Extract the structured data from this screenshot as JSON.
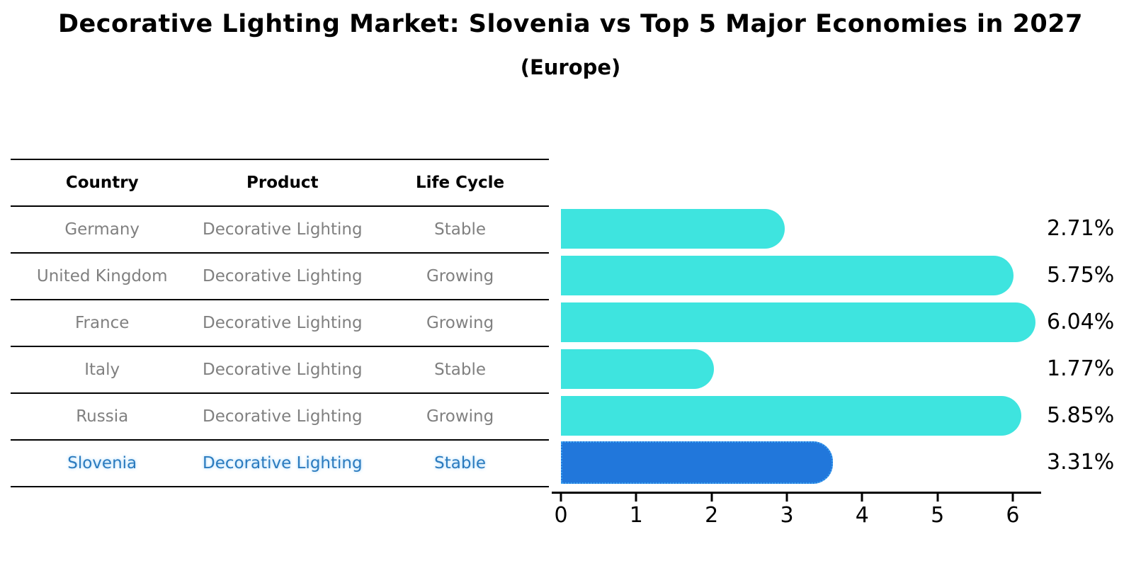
{
  "title": "Decorative Lighting Market: Slovenia vs Top 5 Major Economies in 2027",
  "subtitle": "(Europe)",
  "table": {
    "headers": [
      "Country",
      "Product",
      "Life Cycle"
    ],
    "rows": [
      {
        "country": "Germany",
        "product": "Decorative Lighting",
        "life_cycle": "Stable"
      },
      {
        "country": "United Kingdom",
        "product": "Decorative Lighting",
        "life_cycle": "Growing"
      },
      {
        "country": "France",
        "product": "Decorative Lighting",
        "life_cycle": "Growing"
      },
      {
        "country": "Italy",
        "product": "Decorative Lighting",
        "life_cycle": "Stable"
      },
      {
        "country": "Russia",
        "product": "Decorative Lighting",
        "life_cycle": "Growing"
      },
      {
        "country": "Slovenia",
        "product": "Decorative Lighting",
        "life_cycle": "Stable"
      }
    ]
  },
  "chart_data": {
    "type": "bar",
    "orientation": "horizontal",
    "title": "Decorative Lighting Market: Slovenia vs Top 5 Major Economies in 2027",
    "subtitle": "(Europe)",
    "categories": [
      "Germany",
      "United Kingdom",
      "France",
      "Italy",
      "Russia",
      "Slovenia"
    ],
    "values": [
      2.71,
      5.75,
      6.04,
      1.77,
      5.85,
      3.31
    ],
    "value_labels": [
      "2.71%",
      "5.75%",
      "6.04%",
      "1.77%",
      "5.85%",
      "3.31%"
    ],
    "xlim": [
      0,
      6.5
    ],
    "xticks": [
      0,
      1,
      2,
      3,
      4,
      5,
      6
    ],
    "grid": false,
    "legend": false,
    "highlight_index": 5,
    "bar_color": "#3EE4DF",
    "highlight_bar_color": "#2177DB",
    "highlight_border_color": "#3FA3F2"
  },
  "colors": {
    "row_text": "#808080",
    "highlight_text": "#2B7BBE",
    "axis": "#000000"
  }
}
